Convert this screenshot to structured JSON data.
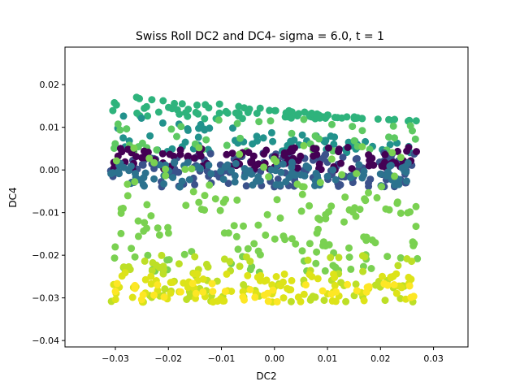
{
  "chart_data": {
    "type": "scatter",
    "title": "Swiss Roll DC2 and DC4- sigma = 6.0, t = 1",
    "xlabel": "DC2",
    "ylabel": "DC4",
    "xlim": [
      -0.0395,
      0.0365
    ],
    "ylim": [
      -0.0415,
      0.0288
    ],
    "x_ticks": [
      -0.03,
      -0.02,
      -0.01,
      0.0,
      0.01,
      0.02,
      0.03
    ],
    "x_tick_labels": [
      "−0.03",
      "−0.02",
      "−0.01",
      "0.00",
      "0.01",
      "0.02",
      "0.03"
    ],
    "y_ticks": [
      -0.04,
      -0.03,
      -0.02,
      -0.01,
      0.0,
      0.01,
      0.02
    ],
    "y_tick_labels": [
      "−0.04",
      "−0.03",
      "−0.02",
      "−0.01",
      "0.00",
      "0.01",
      "0.02"
    ],
    "grid": false,
    "legend": "none",
    "colormap": "viridis",
    "bands": [
      {
        "x_range": [
          -0.031,
          0.027
        ],
        "y_range": [
          0.012,
          0.018
        ],
        "color": "#2eb37c",
        "count": 90
      },
      {
        "x_range": [
          -0.031,
          0.027
        ],
        "y_range": [
          0.004,
          0.013
        ],
        "color": "#22928c",
        "count": 70
      },
      {
        "x_range": [
          -0.031,
          0.027
        ],
        "y_range": [
          0.004,
          0.012
        ],
        "color": "#5ec962",
        "count": 45
      },
      {
        "x_range": [
          -0.031,
          0.027
        ],
        "y_range": [
          -0.004,
          0.004
        ],
        "color": "#3b528b",
        "count": 150
      },
      {
        "x_range": [
          -0.031,
          0.027
        ],
        "y_range": [
          0.0,
          0.0055
        ],
        "color": "#440154",
        "count": 110
      },
      {
        "x_range": [
          -0.031,
          0.027
        ],
        "y_range": [
          -0.004,
          0.002
        ],
        "color": "#2c728e",
        "count": 110
      },
      {
        "x_range": [
          -0.031,
          0.027
        ],
        "y_range": [
          -0.004,
          0.006
        ],
        "color": "#7ad151",
        "count": 30
      },
      {
        "x_range": [
          -0.031,
          0.027
        ],
        "y_range": [
          -0.024,
          -0.005
        ],
        "color": "#7ad151",
        "count": 130
      },
      {
        "x_range": [
          -0.031,
          0.027
        ],
        "y_range": [
          -0.031,
          -0.02
        ],
        "color": "#bddf26",
        "count": 90
      },
      {
        "x_range": [
          -0.031,
          0.027
        ],
        "y_range": [
          -0.031,
          -0.024
        ],
        "color": "#dde318",
        "count": 90
      },
      {
        "x_range": [
          -0.031,
          0.027
        ],
        "y_range": [
          -0.031,
          -0.026
        ],
        "color": "#fde725",
        "count": 40
      }
    ]
  }
}
